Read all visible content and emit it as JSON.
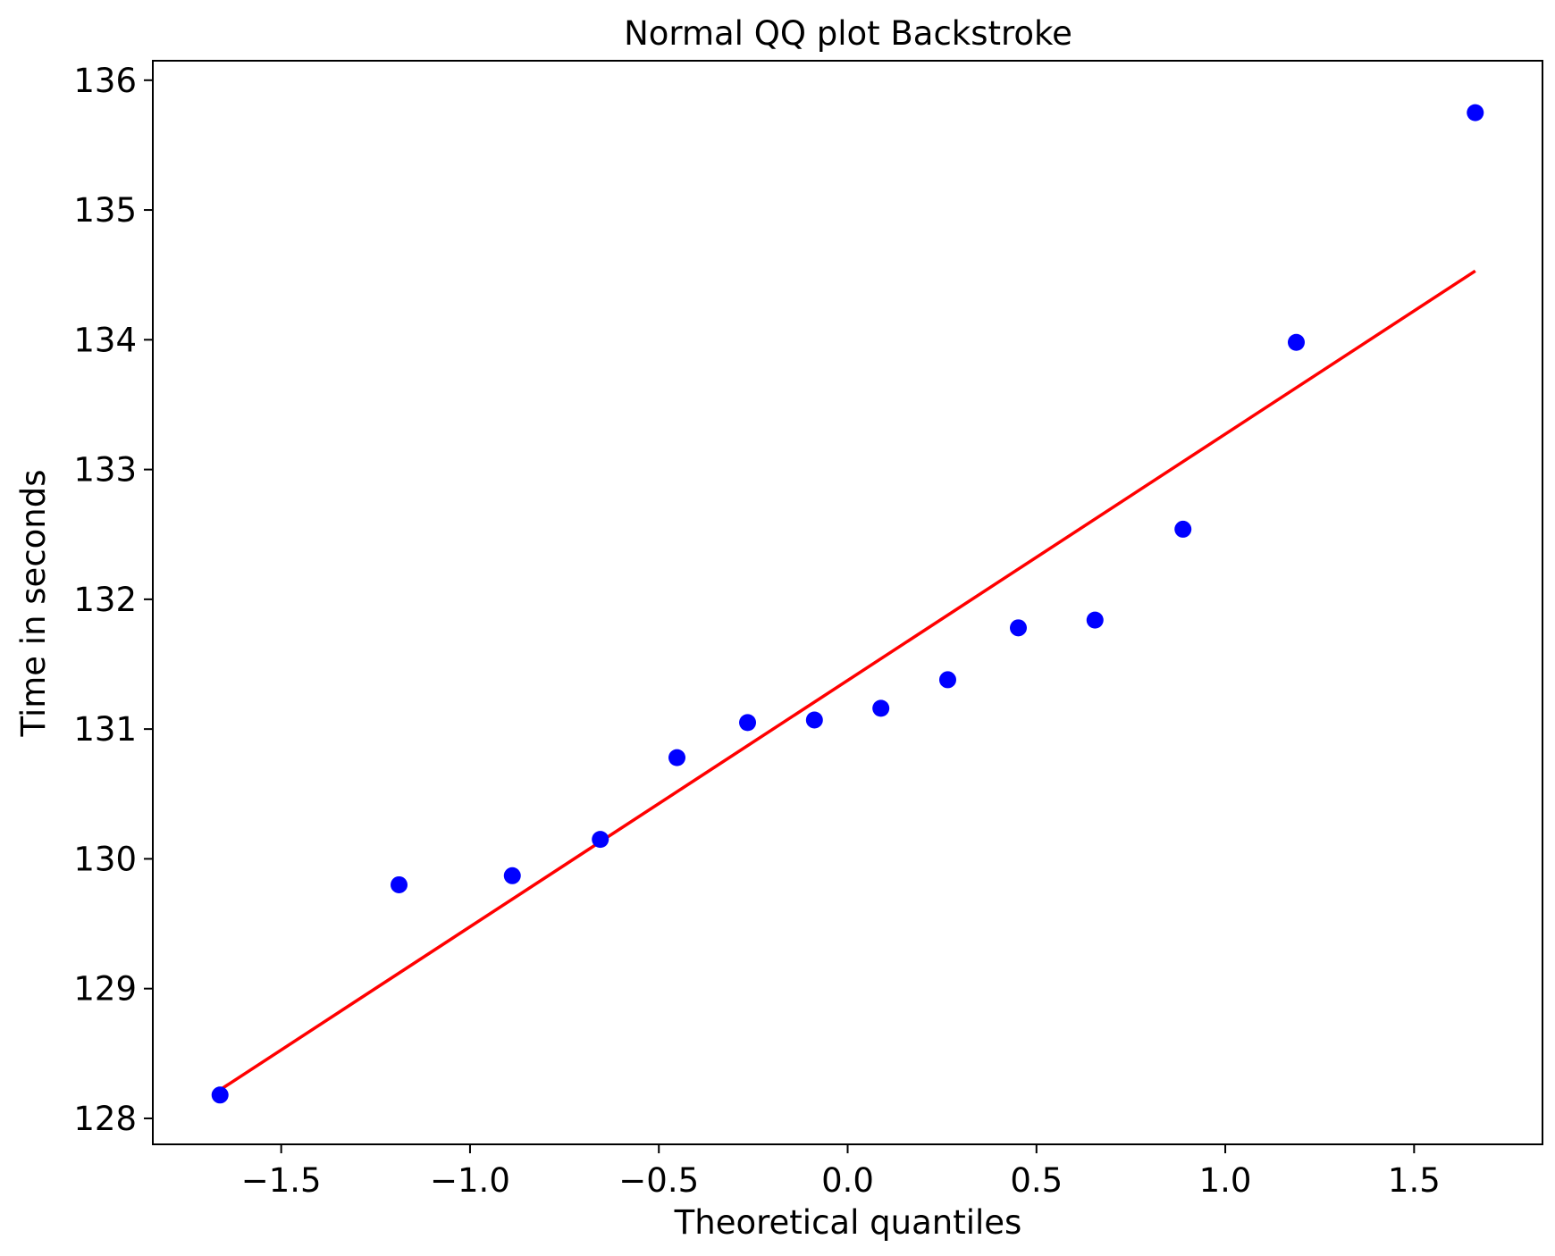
{
  "chart_data": {
    "type": "scatter",
    "title": "Normal QQ plot Backstroke",
    "xlabel": "Theoretical quantiles",
    "ylabel": "Time in seconds",
    "xlim": [
      -1.84,
      1.84
    ],
    "ylim": [
      127.8,
      136.15
    ],
    "x_ticks": [
      -1.5,
      -1.0,
      -0.5,
      0.0,
      0.5,
      1.0,
      1.5
    ],
    "x_tick_labels": [
      "−1.5",
      "−1.0",
      "−0.5",
      "0.0",
      "0.5",
      "1.0",
      "1.5"
    ],
    "y_ticks": [
      128,
      129,
      130,
      131,
      132,
      133,
      134,
      135,
      136
    ],
    "y_tick_labels": [
      "128",
      "129",
      "130",
      "131",
      "132",
      "133",
      "134",
      "135",
      "136"
    ],
    "grid": false,
    "series": [
      {
        "type": "scatter",
        "color": "#0000ff",
        "x": [
          -1.662,
          -1.188,
          -0.888,
          -0.655,
          -0.452,
          -0.265,
          -0.088,
          0.088,
          0.265,
          0.452,
          0.655,
          0.888,
          1.188,
          1.662
        ],
        "y": [
          128.18,
          129.8,
          129.87,
          130.15,
          130.78,
          131.05,
          131.07,
          131.16,
          131.38,
          131.78,
          131.84,
          132.54,
          133.98,
          135.75
        ]
      },
      {
        "type": "line",
        "color": "#ff0000",
        "x": [
          -1.662,
          1.662
        ],
        "y": [
          128.22,
          134.53
        ]
      }
    ]
  }
}
